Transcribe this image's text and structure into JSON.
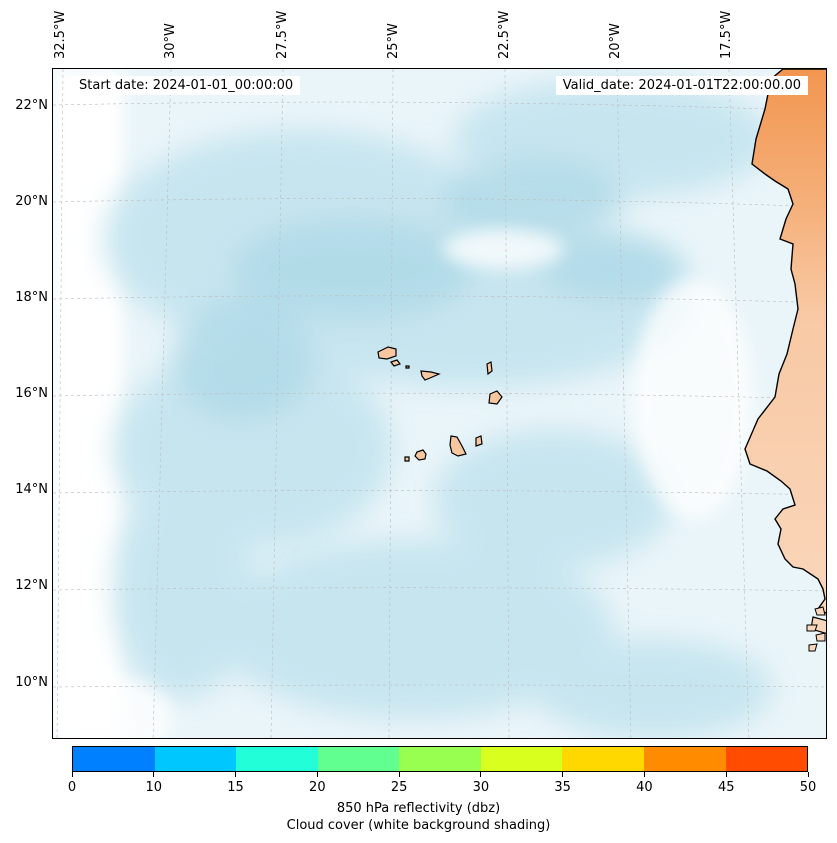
{
  "header": {
    "start_date": "Start date: 2024-01-01_00:00:00",
    "valid_date": "Valid_date: 2024-01-01T22:00:00.00"
  },
  "map": {
    "lon_labels": [
      "32.5°W",
      "30°W",
      "27.5°W",
      "25°W",
      "22.5°W",
      "20°W",
      "17.5°W"
    ],
    "lat_labels": [
      "22°N",
      "20°N",
      "18°N",
      "16°N",
      "14°N",
      "12°N",
      "10°N"
    ],
    "land_color": "#f8c7a0",
    "land_dark_color": "#f2a060",
    "cloud_color": "#a8d8e6",
    "coastline_color": "#000000"
  },
  "colorbar": {
    "ticks": [
      "0",
      "10",
      "15",
      "20",
      "25",
      "30",
      "35",
      "40",
      "45",
      "50"
    ],
    "colors": [
      "#0080ff",
      "#00c8ff",
      "#22ffd8",
      "#60ff90",
      "#98ff50",
      "#d8ff1e",
      "#ffd800",
      "#ff8c00",
      "#ff4c00"
    ],
    "title_line1": "850 hPa reflectivity (dbz)",
    "title_line2": "Cloud cover (white background shading)"
  }
}
